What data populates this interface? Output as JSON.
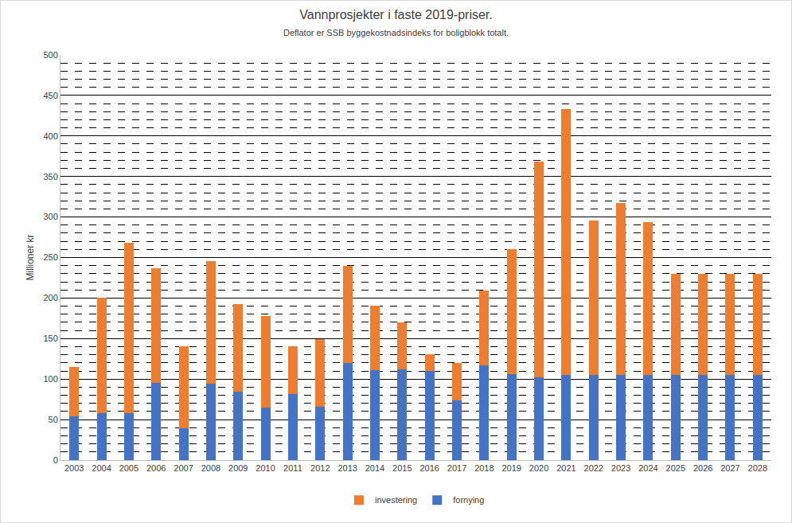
{
  "chart_data": {
    "type": "bar",
    "title": "Vannprosjekter i faste 2019-priser.",
    "subtitle": "Deflator er SSB byggekostnadsindeks for boligblokk totalt.",
    "y_label": "Millioner kr",
    "categories": [
      "2003",
      "2004",
      "2005",
      "2006",
      "2007",
      "2008",
      "2009",
      "2010",
      "2011",
      "2012",
      "2013",
      "2014",
      "2015",
      "2016",
      "2017",
      "2018",
      "2019",
      "2020",
      "2021",
      "2022",
      "2023",
      "2024",
      "2025",
      "2026",
      "2027",
      "2028"
    ],
    "series": [
      {
        "name": "fornying",
        "color": "#4472c4",
        "values": [
          54,
          58,
          58,
          95,
          39,
          94,
          84,
          65,
          82,
          66,
          120,
          111,
          112,
          110,
          74,
          117,
          106,
          102,
          105,
          105,
          105,
          105,
          105,
          105,
          105,
          105
        ]
      },
      {
        "name": "investering",
        "color": "#ed7d31",
        "values": [
          61,
          142,
          210,
          142,
          101,
          152,
          109,
          113,
          58,
          83,
          120,
          80,
          58,
          21,
          46,
          92,
          154,
          266,
          328,
          191,
          212,
          189,
          125,
          125,
          125,
          125
        ]
      }
    ],
    "stacked": true,
    "ylim": [
      0,
      500
    ],
    "yticks": [
      0,
      50,
      100,
      150,
      200,
      250,
      300,
      350,
      400,
      450,
      500
    ],
    "grid": true,
    "legend": "bottom"
  }
}
